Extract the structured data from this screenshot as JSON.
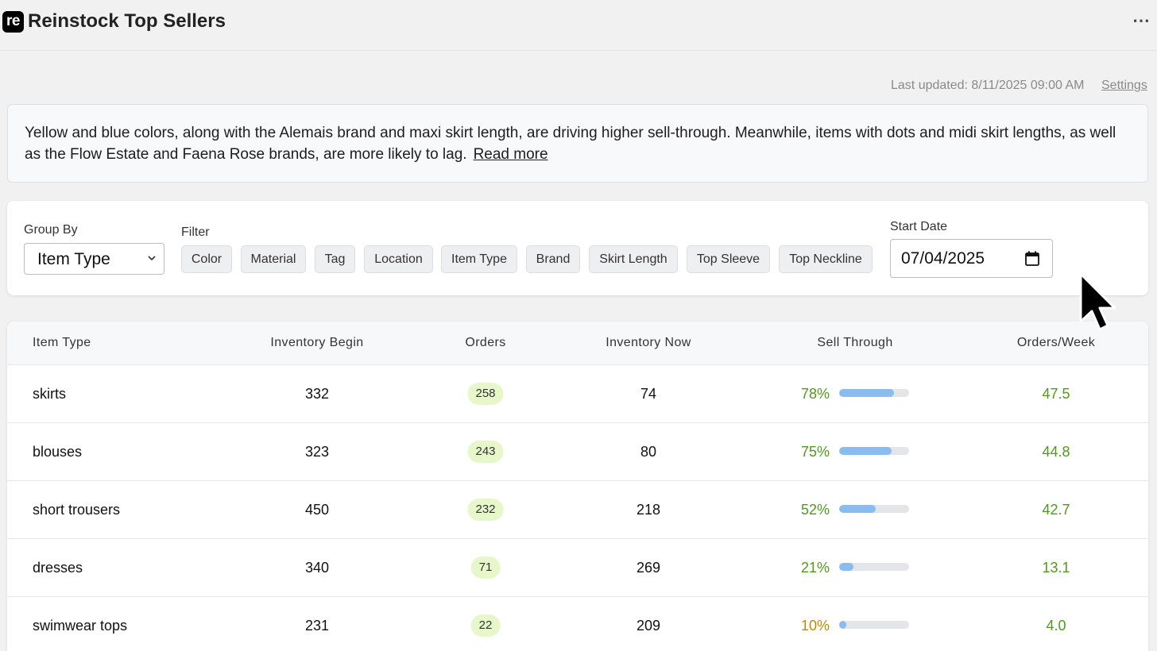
{
  "app": {
    "logo_text": "re",
    "title": "Reinstock Top Sellers",
    "menu": "⋯"
  },
  "meta": {
    "last_updated": "Last updated: 8/11/2025 09:00 AM",
    "settings": "Settings"
  },
  "insight": {
    "text": "Yellow and blue colors, along with the Alemais brand and maxi skirt length, are driving higher sell-through. Meanwhile, items with dots and midi skirt lengths, as well as the Flow Estate and Faena Rose brands, are more likely to lag.",
    "read_more": "Read more"
  },
  "controls": {
    "group_by_label": "Group By",
    "group_by_value": "Item Type",
    "filter_label": "Filter",
    "filters": [
      "Color",
      "Material",
      "Tag",
      "Location",
      "Item Type",
      "Brand",
      "Skirt Length",
      "Top Sleeve",
      "Top Neckline"
    ],
    "start_date_label": "Start Date",
    "start_date_value": "07/04/2025"
  },
  "table": {
    "columns": [
      "Item Type",
      "Inventory Begin",
      "Orders",
      "Inventory Now",
      "Sell Through",
      "Orders/Week"
    ],
    "rows": [
      {
        "item": "skirts",
        "begin": "332",
        "orders": "258",
        "now": "74",
        "sell_through": "78%",
        "sell_fraction": 0.78,
        "per_week": "47.5"
      },
      {
        "item": "blouses",
        "begin": "323",
        "orders": "243",
        "now": "80",
        "sell_through": "75%",
        "sell_fraction": 0.75,
        "per_week": "44.8"
      },
      {
        "item": "short trousers",
        "begin": "450",
        "orders": "232",
        "now": "218",
        "sell_through": "52%",
        "sell_fraction": 0.52,
        "per_week": "42.7"
      },
      {
        "item": "dresses",
        "begin": "340",
        "orders": "71",
        "now": "269",
        "sell_through": "21%",
        "sell_fraction": 0.21,
        "per_week": "13.1"
      },
      {
        "item": "swimwear tops",
        "begin": "231",
        "orders": "22",
        "now": "209",
        "sell_through": "10%",
        "sell_fraction": 0.1,
        "per_week": "4.0"
      }
    ]
  },
  "colors": {
    "good": "#4f9a1c",
    "warn": "#c08a00",
    "bar": "#8bbcf0",
    "pill": "#e7f7c9"
  },
  "icons": {
    "dropdown": "chevron-down-icon",
    "calendar": "calendar-icon",
    "menu": "more-icon",
    "pointer": "mouse-pointer-icon"
  }
}
